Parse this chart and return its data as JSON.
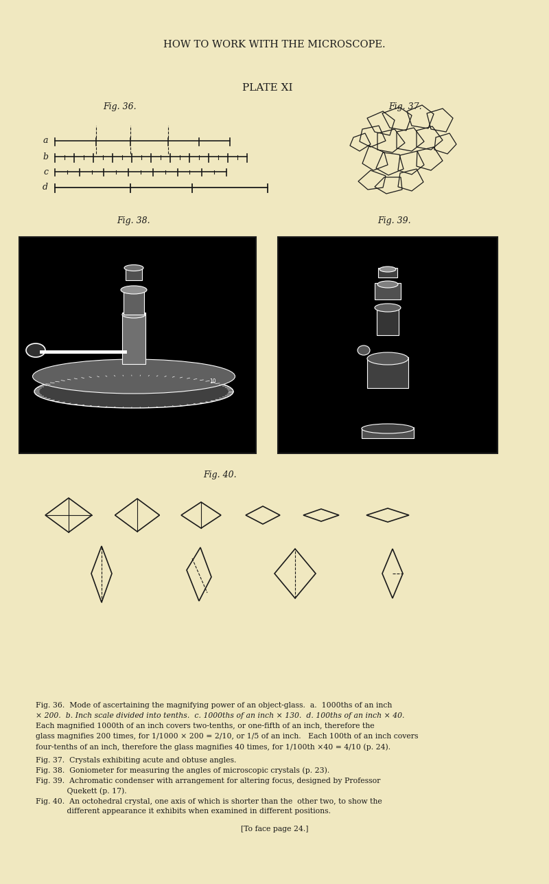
{
  "bg_color": "#f0e8c0",
  "page_title": "HOW TO WORK WITH THE MICROSCOPE.",
  "plate_label": "PLATE XI",
  "fig36_label": "Fig. 36.",
  "fig37_label": "Fig. 37.",
  "fig38_label": "Fig. 38.",
  "fig39_label": "Fig. 39.",
  "fig40_label": "Fig. 40.",
  "text_color": "#1a1a1a",
  "line_color": "#1a1a1a",
  "caption_fig36_1": "Fig. 36.  Mode of ascertaining the magnifying power of an object-glass.  a.  1000ths of an inch",
  "caption_fig36_2": "× 200.  b. Inch scale divided into tenths.  c. 1000ths of an inch × 130.  d. 100ths of an inch × 40.",
  "caption_fig36_3": "Each magnified 1000th of an inch covers two-tenths, or one-fifth of an inch, therefore the",
  "caption_fig36_4": "glass magnifies 200 times, for 1/1000 × 200 = 2/10, or 1/5 of an inch.   Each 100th of an inch covers",
  "caption_fig36_5": "four-tenths of an inch, therefore the glass magnifies 40 times, for 1/100th ×40 = 4/10 (p. 24).",
  "caption_fig37": "Fig. 37.  Crystals exhibiting acute and obtuse angles.",
  "caption_fig38": "Fig. 38.  Goniometer for measuring the angles of microscopic crystals (p. 23).",
  "caption_fig39a": "Fig. 39.  Achromatic condenser with arrangement for altering focus, designed by Professor",
  "caption_fig39b": "             Quekett (p. 17).",
  "caption_fig40a": "Fig. 40.  An octohedral crystal, one axis of which is shorter than the  other two, to show the",
  "caption_fig40b": "             different appearance it exhibits when examined in different positions.",
  "caption_foot": "[To face page 24.]"
}
